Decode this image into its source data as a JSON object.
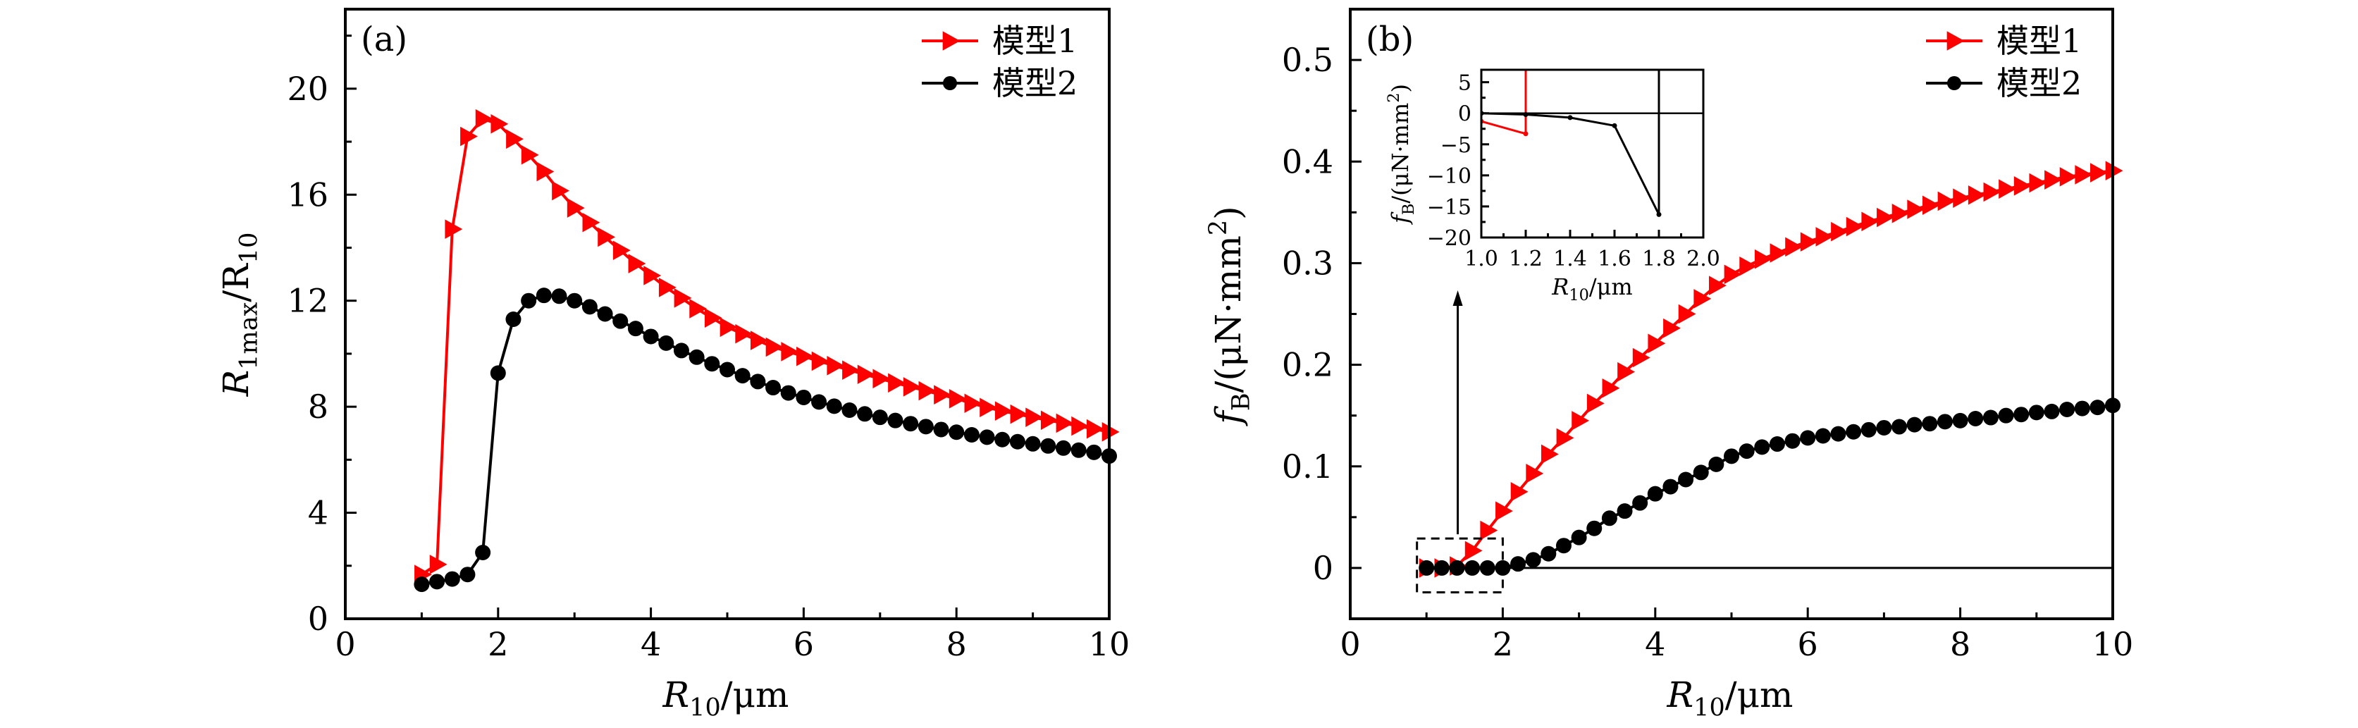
{
  "colors": {
    "model1": "#ff0000",
    "model2": "#000000",
    "axis": "#000000"
  },
  "chart_data": [
    {
      "type": "line",
      "panel_label": "(a)",
      "title": "",
      "xlabel": {
        "main": "R",
        "sub": "10",
        "rest": "/μm"
      },
      "ylabel": {
        "main": "R",
        "sub": "1max",
        "rest": "/R",
        "sub2": "10"
      },
      "xlim": [
        0,
        10
      ],
      "ylim": [
        0,
        23
      ],
      "xticks": [
        0,
        2,
        4,
        6,
        8,
        10
      ],
      "xtick_labels": [
        "0",
        "2",
        "4",
        "6",
        "8",
        "10"
      ],
      "yticks": [
        0,
        4,
        8,
        12,
        16,
        20
      ],
      "ytick_labels": [
        "0",
        "4",
        "8",
        "12",
        "16",
        "20"
      ],
      "grid": false,
      "legend_position": "top-right",
      "x": [
        1.0,
        1.2,
        1.4,
        1.6,
        1.8,
        2.0,
        2.2,
        2.4,
        2.6,
        2.8,
        3.0,
        3.2,
        3.4,
        3.6,
        3.8,
        4.0,
        4.2,
        4.4,
        4.6,
        4.8,
        5.0,
        5.2,
        5.4,
        5.6,
        5.8,
        6.0,
        6.2,
        6.4,
        6.6,
        6.8,
        7.0,
        7.2,
        7.4,
        7.6,
        7.8,
        8.0,
        8.2,
        8.4,
        8.6,
        8.8,
        9.0,
        9.2,
        9.4,
        9.6,
        9.8,
        10.0
      ],
      "series": [
        {
          "name": "模型1",
          "marker": "triangle-right",
          "values": [
            1.67,
            2.05,
            14.7,
            18.2,
            18.86,
            18.67,
            18.1,
            17.5,
            16.87,
            16.15,
            15.5,
            14.95,
            14.4,
            13.9,
            13.4,
            12.95,
            12.5,
            12.1,
            11.7,
            11.35,
            11.0,
            10.75,
            10.5,
            10.25,
            10.08,
            9.9,
            9.72,
            9.55,
            9.38,
            9.22,
            9.06,
            8.9,
            8.75,
            8.6,
            8.45,
            8.3,
            8.13,
            7.97,
            7.84,
            7.72,
            7.6,
            7.49,
            7.38,
            7.27,
            7.16,
            7.05
          ]
        },
        {
          "name": "模型2",
          "marker": "circle",
          "values": [
            1.3,
            1.4,
            1.5,
            1.67,
            2.5,
            9.27,
            11.3,
            12.0,
            12.2,
            12.17,
            12.0,
            11.77,
            11.5,
            11.23,
            10.95,
            10.65,
            10.4,
            10.12,
            9.87,
            9.62,
            9.4,
            9.17,
            8.95,
            8.72,
            8.52,
            8.35,
            8.18,
            8.02,
            7.87,
            7.73,
            7.6,
            7.48,
            7.36,
            7.25,
            7.14,
            7.04,
            6.94,
            6.85,
            6.76,
            6.68,
            6.6,
            6.52,
            6.44,
            6.36,
            6.28,
            6.14
          ]
        }
      ]
    },
    {
      "type": "line",
      "panel_label": "(b)",
      "title": "",
      "xlabel": {
        "main": "R",
        "sub": "10",
        "rest": "/μm"
      },
      "ylabel": {
        "main": "f",
        "sub": "B",
        "rest": "/(μN·mm",
        "sup": "2",
        "close": ")"
      },
      "xlim": [
        0,
        10
      ],
      "ylim": [
        -0.05,
        0.55
      ],
      "xticks": [
        0,
        2,
        4,
        6,
        8,
        10
      ],
      "xtick_labels": [
        "0",
        "2",
        "4",
        "6",
        "8",
        "10"
      ],
      "yticks": [
        0,
        0.1,
        0.2,
        0.3,
        0.4,
        0.5
      ],
      "ytick_labels": [
        "0",
        "0.1",
        "0.2",
        "0.3",
        "0.4",
        "0.5"
      ],
      "grid": false,
      "legend_position": "top-right",
      "reference_line_y": 0,
      "zoom_box": {
        "x": [
          0.875,
          2.0
        ],
        "y": [
          -0.024,
          0.029
        ]
      },
      "x": [
        1.0,
        1.2,
        1.4,
        1.6,
        1.8,
        2.0,
        2.2,
        2.4,
        2.6,
        2.8,
        3.0,
        3.2,
        3.4,
        3.6,
        3.8,
        4.0,
        4.2,
        4.4,
        4.6,
        4.8,
        5.0,
        5.2,
        5.4,
        5.6,
        5.8,
        6.0,
        6.2,
        6.4,
        6.6,
        6.8,
        7.0,
        7.2,
        7.4,
        7.6,
        7.8,
        8.0,
        8.2,
        8.4,
        8.6,
        8.8,
        9.0,
        9.2,
        9.4,
        9.6,
        9.8,
        10.0
      ],
      "series": [
        {
          "name": "模型1",
          "marker": "triangle-right",
          "values": [
            0,
            0,
            0.002,
            0.017,
            0.037,
            0.056,
            0.075,
            0.093,
            0.112,
            0.128,
            0.145,
            0.162,
            0.177,
            0.193,
            0.207,
            0.221,
            0.236,
            0.25,
            0.265,
            0.278,
            0.289,
            0.297,
            0.304,
            0.31,
            0.316,
            0.321,
            0.326,
            0.331,
            0.336,
            0.341,
            0.345,
            0.349,
            0.353,
            0.357,
            0.361,
            0.364,
            0.367,
            0.37,
            0.373,
            0.376,
            0.379,
            0.382,
            0.385,
            0.387,
            0.389,
            0.391
          ]
        },
        {
          "name": "模型2",
          "marker": "circle",
          "values": [
            0,
            0,
            0,
            0,
            0,
            0,
            0.004,
            0.008,
            0.014,
            0.022,
            0.03,
            0.039,
            0.049,
            0.056,
            0.064,
            0.073,
            0.08,
            0.087,
            0.094,
            0.102,
            0.11,
            0.115,
            0.119,
            0.122,
            0.125,
            0.128,
            0.13,
            0.132,
            0.134,
            0.136,
            0.138,
            0.139,
            0.141,
            0.142,
            0.144,
            0.145,
            0.147,
            0.148,
            0.15,
            0.151,
            0.153,
            0.154,
            0.156,
            0.157,
            0.158,
            0.16
          ]
        }
      ],
      "inset": {
        "type": "line",
        "xlabel": {
          "main": "R",
          "sub": "10",
          "rest": "/μm"
        },
        "ylabel": {
          "main": "f",
          "sub": "B",
          "rest": "/(μN·mm",
          "sup": "2",
          "close": ")"
        },
        "xlim": [
          1.0,
          2.0
        ],
        "ylim": [
          -20,
          7
        ],
        "xticks": [
          1.0,
          1.2,
          1.4,
          1.6,
          1.8,
          2.0
        ],
        "xtick_labels": [
          "1.0",
          "1.2",
          "1.4",
          "1.6",
          "1.8",
          "2.0"
        ],
        "yticks": [
          5,
          0,
          -5,
          -10,
          -15,
          -20
        ],
        "ytick_labels": [
          "5",
          "0",
          "−5",
          "−10",
          "−15",
          "−20"
        ],
        "reference_line_y": 0,
        "series": [
          {
            "name": "模型1",
            "x": [
              1.0,
              1.2,
              1.2
            ],
            "values": [
              -1.3,
              -3.3,
              7
            ]
          },
          {
            "name": "模型2",
            "x": [
              1.0,
              1.2,
              1.4,
              1.6,
              1.8,
              1.8
            ],
            "values": [
              0.0,
              -0.2,
              -0.7,
              -2.0,
              -16.3,
              7
            ]
          }
        ]
      }
    }
  ]
}
